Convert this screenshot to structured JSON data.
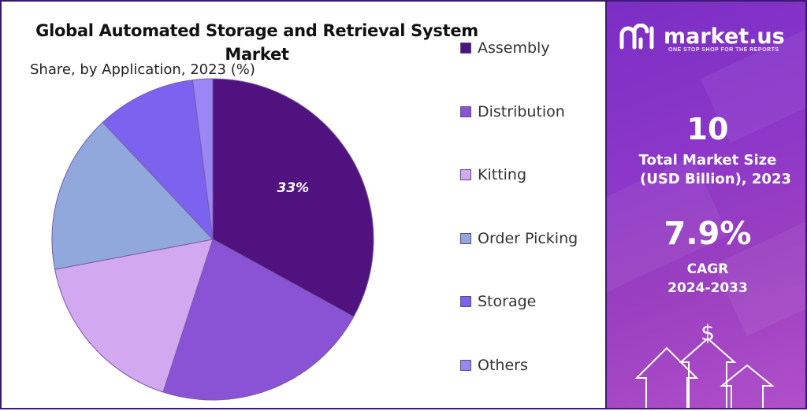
{
  "chart_data": {
    "type": "pie",
    "title": "Global Automated Storage and Retrieval System Market",
    "subtitle": "Share, by Application, 2023 (%)",
    "categories": [
      "Assembly",
      "Distribution",
      "Kitting",
      "Order Picking",
      "Storage",
      "Others"
    ],
    "values": [
      33,
      22,
      17,
      16,
      10,
      2
    ],
    "colors": [
      "#4f127f",
      "#8a52d4",
      "#d2a9f0",
      "#90a8dc",
      "#7b63f0",
      "#9b86f5"
    ],
    "data_labels": [
      "33%",
      "",
      "",
      "",
      "",
      ""
    ],
    "legend_position": "right"
  },
  "brand": {
    "name": "market.us",
    "tagline": "ONE STOP SHOP FOR THE REPORTS"
  },
  "stats": {
    "market_size_value": "10",
    "market_size_label_1": "Total Market Size",
    "market_size_label_2": "(USD Billion), 2023",
    "cagr_value": "7.9%",
    "cagr_label_1": "CAGR",
    "cagr_label_2": "2024-2033"
  },
  "icons": {
    "dollar": "$"
  }
}
